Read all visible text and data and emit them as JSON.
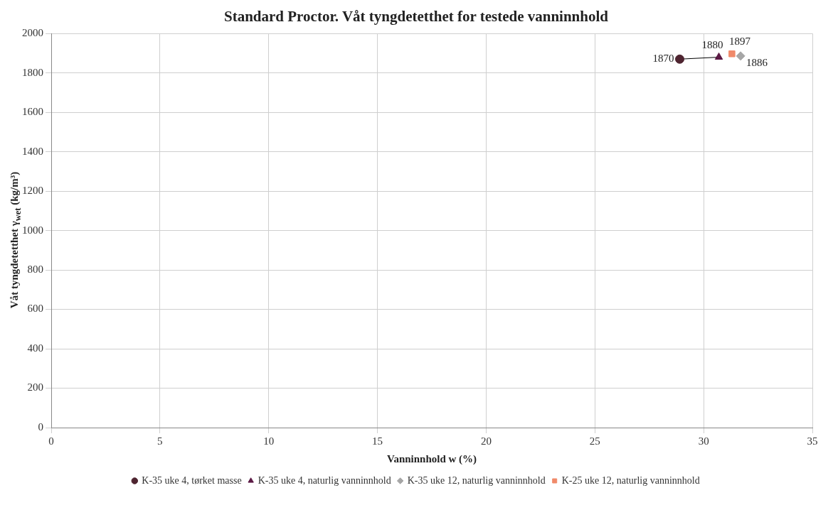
{
  "chart_data": {
    "type": "scatter",
    "title": "Standard Proctor. Våt tyngdetetthet for testede vanninnhold",
    "xlabel": "Vanninnhold w (%)",
    "ylabel": "Våt tyngdetetthet γ$_{wet}$ (kg/m³)",
    "xlim": [
      0,
      35
    ],
    "xticks": [
      0,
      5,
      10,
      15,
      20,
      25,
      30,
      35
    ],
    "ylim": [
      0,
      2000
    ],
    "yticks": [
      0,
      200,
      400,
      600,
      800,
      1000,
      1200,
      1400,
      1600,
      1800,
      2000
    ],
    "grid": true,
    "legend": "bottom",
    "series": [
      {
        "name": "K-35 uke 4, tørket masse",
        "color": "#4e2430",
        "marker": "circle",
        "x": [
          28.9
        ],
        "values": [
          1870
        ],
        "value_labels": [
          "1870"
        ]
      },
      {
        "name": "K-35 uke 4, naturlig vanninnhold",
        "color": "#5c1a45",
        "marker": "triangle",
        "x": [
          30.7
        ],
        "values": [
          1880
        ],
        "value_labels": [
          "1880"
        ]
      },
      {
        "name": "K-35 uke 12, naturlig vanninnhold",
        "color": "#a6a6a6",
        "marker": "diamond",
        "x": [
          31.7
        ],
        "values": [
          1886
        ],
        "value_labels": [
          "1886"
        ]
      },
      {
        "name": "K-25 uke 12, naturlig vanninnhold",
        "color": "#f08a6a",
        "marker": "square",
        "x": [
          31.3
        ],
        "values": [
          1897
        ],
        "value_labels": [
          "1897"
        ]
      },
      {
        "type": "line",
        "color": "#000000",
        "marker": "none",
        "x": [
          28.9,
          30.7
        ],
        "values": [
          1870,
          1880
        ]
      }
    ]
  }
}
